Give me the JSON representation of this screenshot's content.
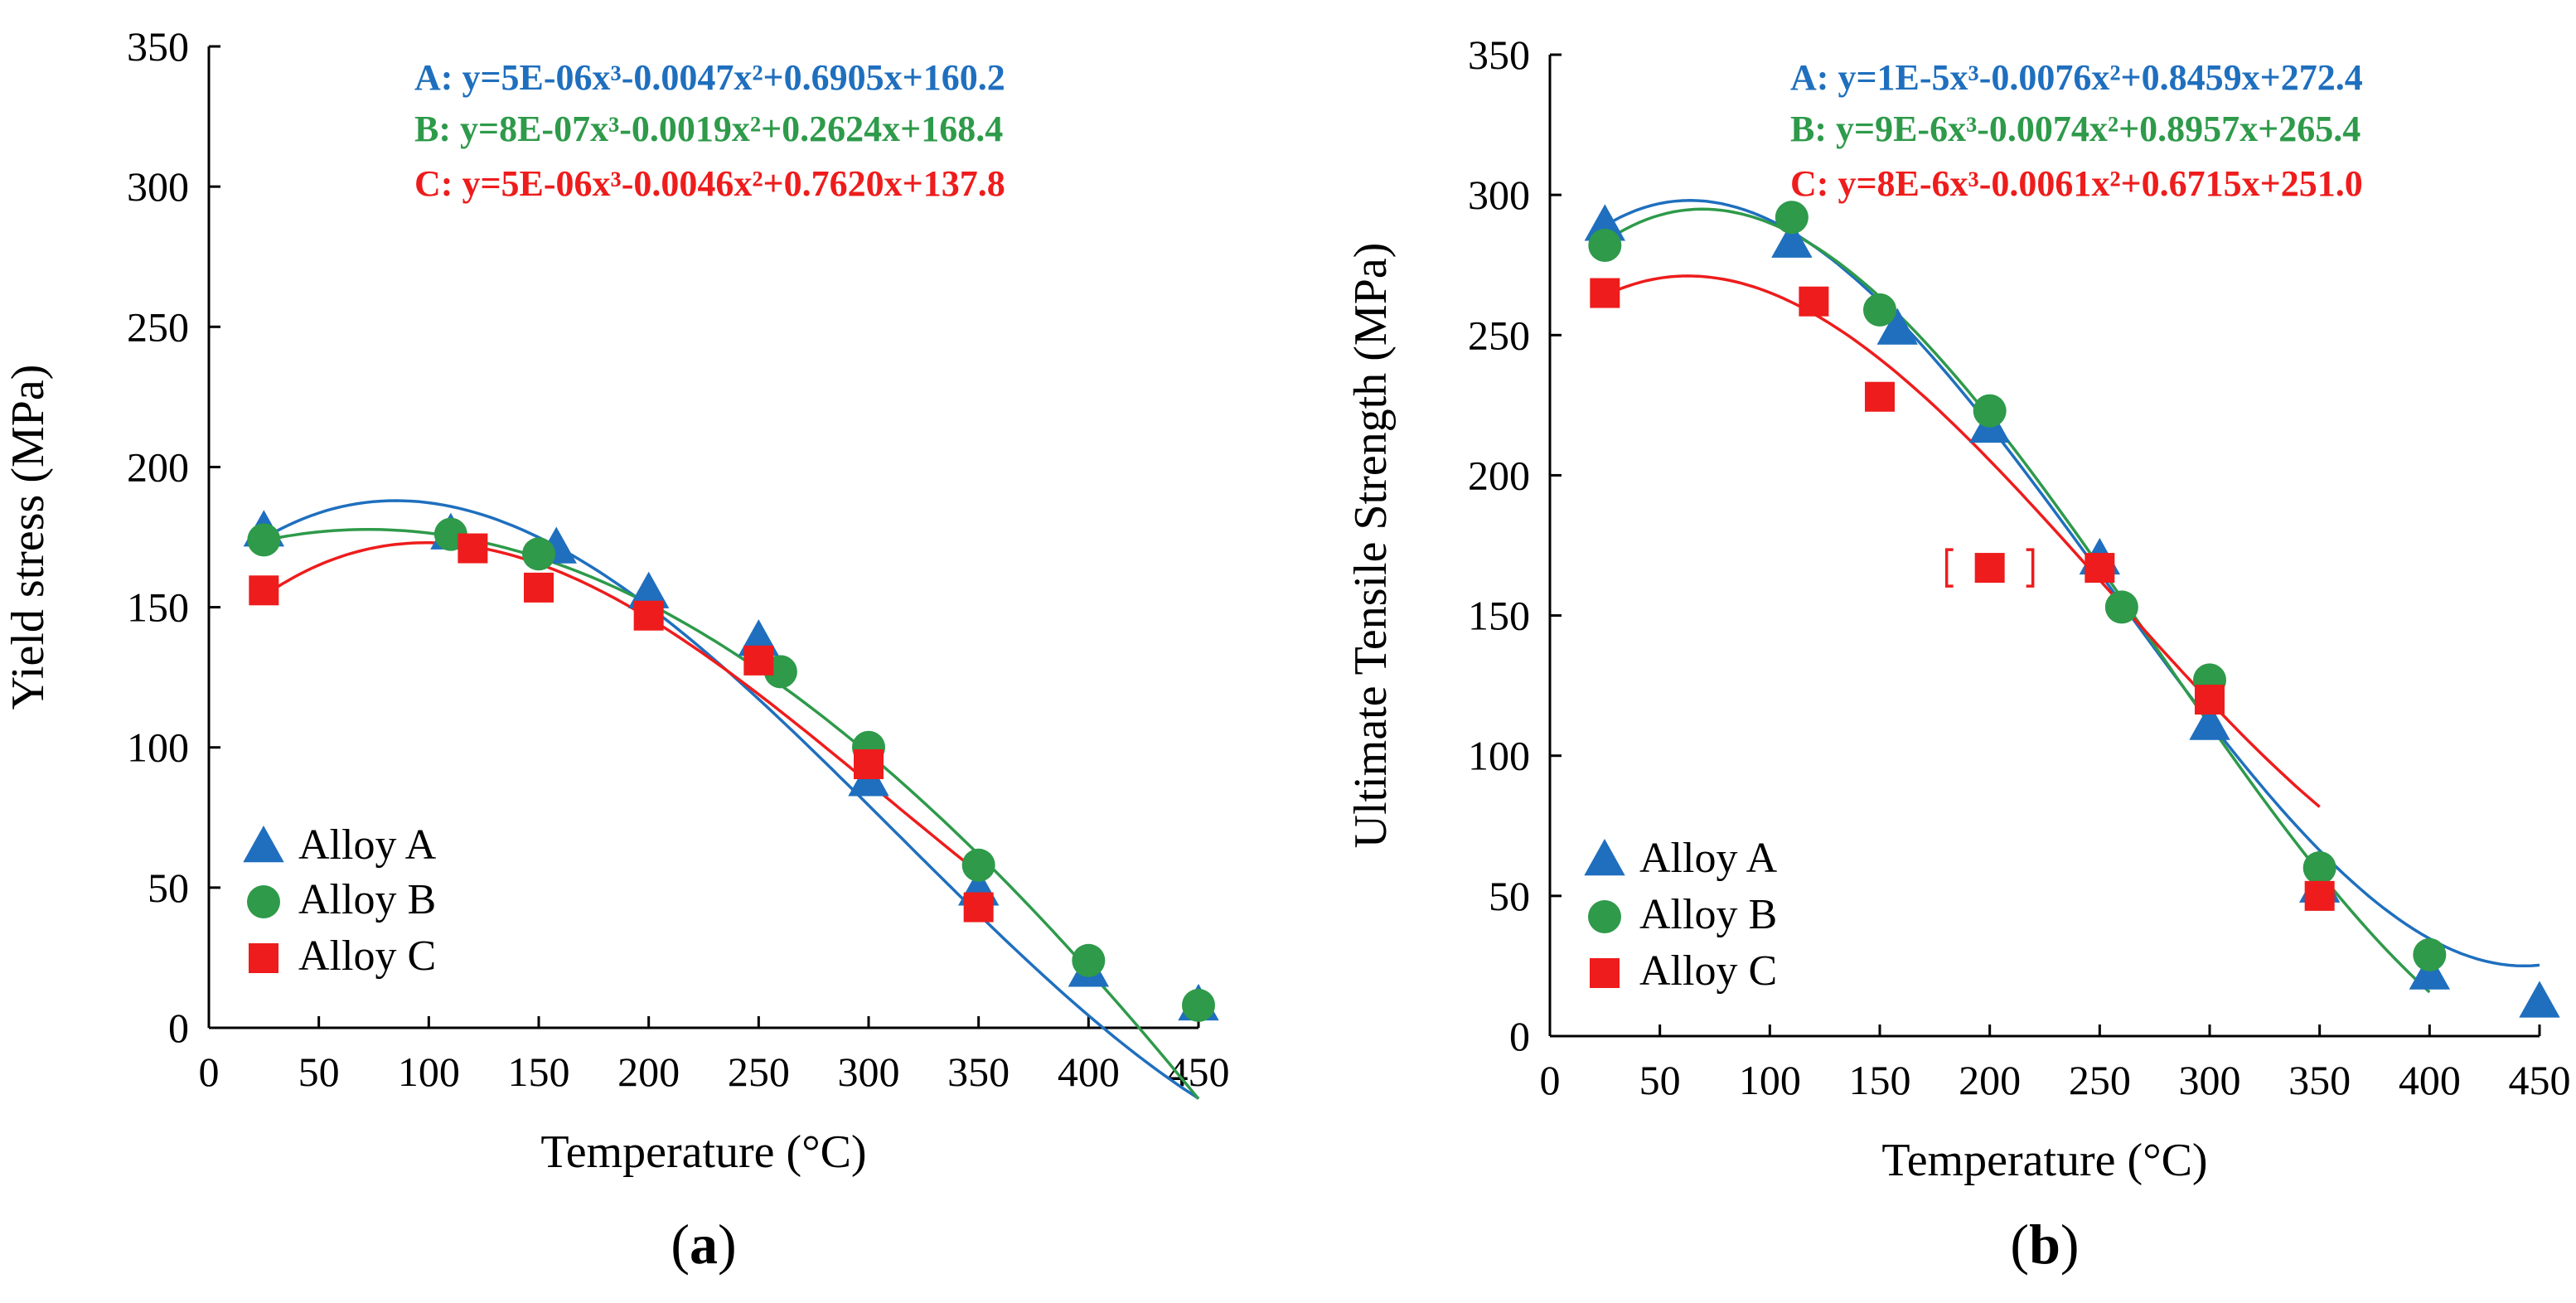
{
  "colors": {
    "A": "#1f6fbe",
    "B": "#2e9a4a",
    "C": "#ee1c1c"
  },
  "chart_data": [
    {
      "type": "scatter",
      "panel_label": "a",
      "xlabel": "Temperature (°C)",
      "ylabel": "Yield stress  (MPa)",
      "xlim": [
        0,
        450
      ],
      "ylim": [
        0,
        350
      ],
      "xticks": [
        0,
        50,
        100,
        150,
        200,
        250,
        300,
        350,
        400,
        450
      ],
      "yticks": [
        0,
        50,
        100,
        150,
        200,
        250,
        300,
        350
      ],
      "grid": false,
      "legend_position": "bottom-left",
      "series": [
        {
          "name": "Alloy A",
          "marker": "triangle",
          "color": "#1f6fbe",
          "eq_prefix": "A:",
          "equation": "y=5E-06x³-0.0047x²+0.6905x+160.2",
          "coefficients": [
            5e-06,
            -0.0047,
            0.6905,
            160.2
          ],
          "x": [
            25,
            110,
            158,
            200,
            250,
            300,
            350,
            400,
            450
          ],
          "y": [
            177,
            176,
            171,
            155,
            138,
            88,
            49,
            20,
            8
          ]
        },
        {
          "name": "Alloy B",
          "marker": "circle",
          "color": "#2e9a4a",
          "eq_prefix": "B:",
          "equation": "y=8E-07x³-0.0019x²+0.2624x+168.4",
          "coefficients": [
            8e-07,
            -0.0019,
            0.2624,
            168.4
          ],
          "x": [
            25,
            110,
            150,
            260,
            300,
            350,
            400,
            450
          ],
          "y": [
            174,
            176,
            169,
            127,
            100,
            58,
            24,
            8
          ]
        },
        {
          "name": "Alloy C",
          "marker": "square",
          "color": "#ee1c1c",
          "eq_prefix": "C:",
          "equation": "y=5E-06x³-0.0046x²+0.7620x+137.8",
          "coefficients": [
            5e-06,
            -0.0046,
            0.762,
            137.8
          ],
          "x": [
            25,
            120,
            150,
            200,
            250,
            300,
            350
          ],
          "y": [
            156,
            171,
            157,
            147,
            131,
            94,
            43
          ]
        }
      ]
    },
    {
      "type": "scatter",
      "panel_label": "b",
      "xlabel": "Temperature (°C)",
      "ylabel": "Ultimate Tensile Strength  (MPa)",
      "xlim": [
        0,
        450
      ],
      "ylim": [
        0,
        350
      ],
      "xticks": [
        0,
        50,
        100,
        150,
        200,
        250,
        300,
        350,
        400,
        450
      ],
      "yticks": [
        0,
        50,
        100,
        150,
        200,
        250,
        300,
        350
      ],
      "grid": false,
      "legend_position": "bottom-left",
      "annotation": "(bracketed outlier at 200 °C)",
      "bracketed_point": {
        "series": "Alloy C",
        "x": 200,
        "y": 167
      },
      "series": [
        {
          "name": "Alloy A",
          "marker": "triangle",
          "color": "#1f6fbe",
          "eq_prefix": "A:",
          "equation": "y=1E-5x³-0.0076x²+0.8459x+272.4",
          "coefficients": [
            1e-05,
            -0.0076,
            0.8459,
            272.4
          ],
          "x": [
            25,
            110,
            158,
            200,
            250,
            300,
            350,
            400,
            450
          ],
          "y": [
            289,
            283,
            252,
            217,
            170,
            111,
            53,
            22,
            12
          ]
        },
        {
          "name": "Alloy B",
          "marker": "circle",
          "color": "#2e9a4a",
          "eq_prefix": "B:",
          "equation": "y=9E-6x³-0.0074x²+0.8957x+265.4",
          "coefficients": [
            9e-06,
            -0.0074,
            0.8957,
            265.4
          ],
          "x": [
            25,
            110,
            150,
            200,
            260,
            300,
            350,
            400
          ],
          "y": [
            282,
            292,
            259,
            223,
            153,
            127,
            60,
            29
          ]
        },
        {
          "name": "Alloy C",
          "marker": "square",
          "color": "#ee1c1c",
          "eq_prefix": "C:",
          "equation": "y=8E-6x³-0.0061x²+0.6715x+251.0",
          "coefficients": [
            8e-06,
            -0.0061,
            0.6715,
            251.0
          ],
          "x": [
            25,
            120,
            150,
            200,
            250,
            300,
            350
          ],
          "y": [
            265,
            262,
            228,
            167,
            167,
            120,
            50
          ]
        }
      ]
    }
  ]
}
